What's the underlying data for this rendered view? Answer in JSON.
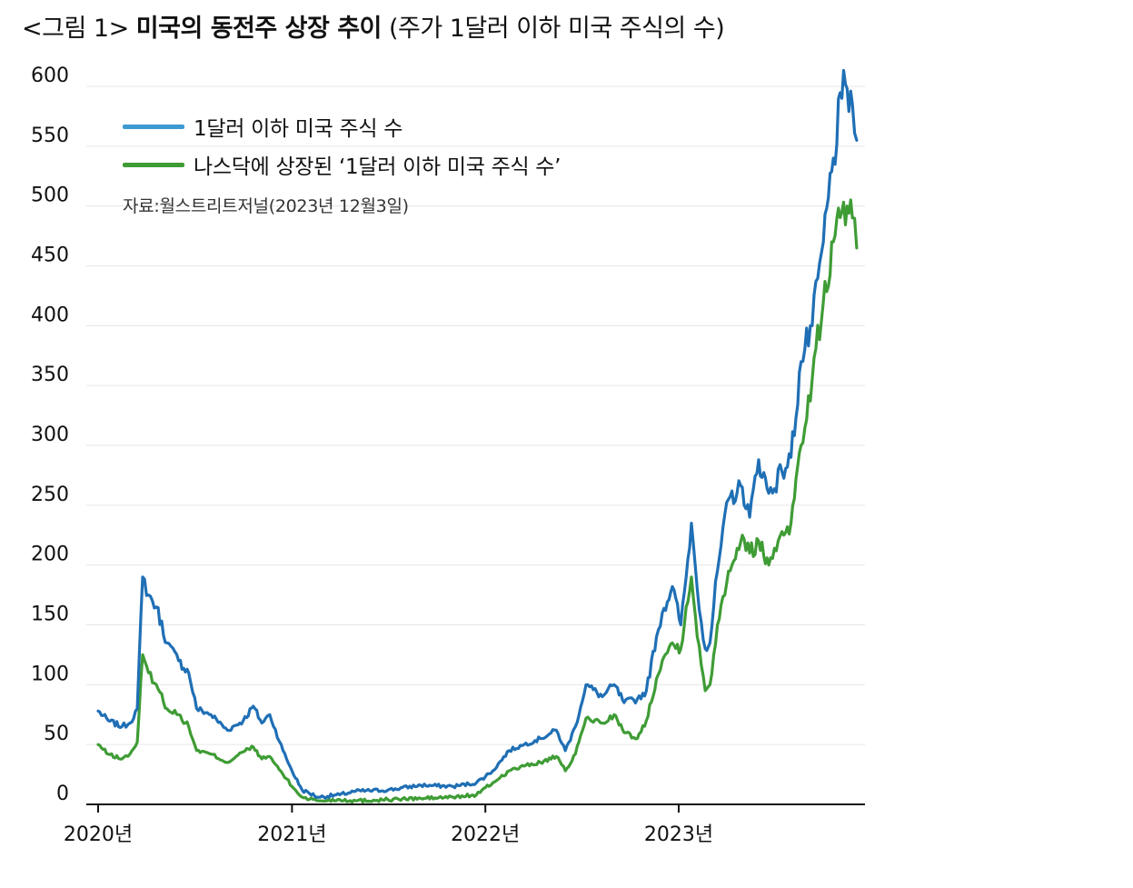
{
  "title": {
    "prefix": "<그림 1>",
    "main": "미국의 동전주 상장 추이",
    "sub": "(주가 1달러 이하 미국 주식의 수)"
  },
  "source": "자료:월스트리트저널(2023년 12월3일)",
  "colors": {
    "series_all": "#1f6fb5",
    "series_all_legend": "#3d9ad1",
    "series_nasdaq": "#3f9c35",
    "grid": "#e6e6e6",
    "axis": "#111111"
  },
  "chart_data": {
    "type": "line",
    "title": "미국의 동전주 상장 추이",
    "subtitle": "(주가 1달러 이하 미국 주식의 수)",
    "xlabel": "",
    "ylabel": "",
    "ylim": [
      0,
      600
    ],
    "yticks": [
      0,
      50,
      100,
      150,
      200,
      250,
      300,
      350,
      400,
      450,
      500,
      550,
      600
    ],
    "xlim": [
      "2020-01-01",
      "2023-12-31"
    ],
    "xticks": [
      {
        "date": "2020-01-01",
        "label": "2020년"
      },
      {
        "date": "2021-01-01",
        "label": "2021년"
      },
      {
        "date": "2022-01-01",
        "label": "2022년"
      },
      {
        "date": "2023-01-01",
        "label": "2023년"
      }
    ],
    "grid": true,
    "legend_position": "top-left",
    "series": [
      {
        "name": "1달러 이하 미국 주식 수",
        "color": "#1f6fb5",
        "points": [
          [
            "2020-01-01",
            78
          ],
          [
            "2020-01-20",
            70
          ],
          [
            "2020-02-15",
            65
          ],
          [
            "2020-03-01",
            68
          ],
          [
            "2020-03-15",
            80
          ],
          [
            "2020-03-25",
            190
          ],
          [
            "2020-04-05",
            175
          ],
          [
            "2020-04-20",
            165
          ],
          [
            "2020-05-10",
            135
          ],
          [
            "2020-06-01",
            120
          ],
          [
            "2020-06-20",
            110
          ],
          [
            "2020-07-05",
            80
          ],
          [
            "2020-08-01",
            75
          ],
          [
            "2020-09-01",
            62
          ],
          [
            "2020-10-01",
            70
          ],
          [
            "2020-10-20",
            82
          ],
          [
            "2020-11-05",
            68
          ],
          [
            "2020-11-20",
            75
          ],
          [
            "2020-12-15",
            45
          ],
          [
            "2021-01-01",
            28
          ],
          [
            "2021-01-20",
            12
          ],
          [
            "2021-02-20",
            6
          ],
          [
            "2021-04-01",
            8
          ],
          [
            "2021-05-01",
            11
          ],
          [
            "2021-07-01",
            12
          ],
          [
            "2021-09-01",
            16
          ],
          [
            "2021-11-01",
            15
          ],
          [
            "2021-12-15",
            18
          ],
          [
            "2022-01-15",
            28
          ],
          [
            "2022-02-15",
            45
          ],
          [
            "2022-03-15",
            50
          ],
          [
            "2022-04-15",
            55
          ],
          [
            "2022-05-15",
            62
          ],
          [
            "2022-06-01",
            45
          ],
          [
            "2022-06-20",
            65
          ],
          [
            "2022-07-10",
            100
          ],
          [
            "2022-08-10",
            90
          ],
          [
            "2022-09-01",
            100
          ],
          [
            "2022-09-20",
            85
          ],
          [
            "2022-10-15",
            88
          ],
          [
            "2022-11-01",
            95
          ],
          [
            "2022-11-20",
            140
          ],
          [
            "2022-12-01",
            160
          ],
          [
            "2022-12-20",
            182
          ],
          [
            "2023-01-05",
            150
          ],
          [
            "2023-01-15",
            190
          ],
          [
            "2023-01-25",
            235
          ],
          [
            "2023-02-05",
            180
          ],
          [
            "2023-02-20",
            130
          ],
          [
            "2023-03-01",
            135
          ],
          [
            "2023-03-15",
            195
          ],
          [
            "2023-04-05",
            255
          ],
          [
            "2023-05-01",
            265
          ],
          [
            "2023-05-15",
            240
          ],
          [
            "2023-06-01",
            288
          ],
          [
            "2023-06-20",
            260
          ],
          [
            "2023-07-15",
            278
          ],
          [
            "2023-08-01",
            290
          ],
          [
            "2023-08-20",
            370
          ],
          [
            "2023-09-10",
            400
          ],
          [
            "2023-10-01",
            470
          ],
          [
            "2023-10-20",
            540
          ],
          [
            "2023-11-05",
            590
          ],
          [
            "2023-11-15",
            598
          ],
          [
            "2023-11-25",
            585
          ],
          [
            "2023-12-03",
            555
          ]
        ]
      },
      {
        "name": "나스닥에 상장된 ‘1달러 이하 미국 주식 수’",
        "color": "#3f9c35",
        "points": [
          [
            "2020-01-01",
            50
          ],
          [
            "2020-01-20",
            42
          ],
          [
            "2020-02-15",
            38
          ],
          [
            "2020-03-01",
            42
          ],
          [
            "2020-03-15",
            52
          ],
          [
            "2020-03-25",
            125
          ],
          [
            "2020-04-05",
            110
          ],
          [
            "2020-04-20",
            100
          ],
          [
            "2020-05-10",
            80
          ],
          [
            "2020-06-01",
            75
          ],
          [
            "2020-06-20",
            65
          ],
          [
            "2020-07-05",
            45
          ],
          [
            "2020-08-01",
            42
          ],
          [
            "2020-09-01",
            35
          ],
          [
            "2020-10-01",
            44
          ],
          [
            "2020-10-20",
            48
          ],
          [
            "2020-11-05",
            38
          ],
          [
            "2020-11-20",
            40
          ],
          [
            "2020-12-15",
            25
          ],
          [
            "2021-01-01",
            15
          ],
          [
            "2021-01-20",
            6
          ],
          [
            "2021-02-20",
            3
          ],
          [
            "2021-04-01",
            4
          ],
          [
            "2021-05-01",
            3
          ],
          [
            "2021-07-01",
            4
          ],
          [
            "2021-09-01",
            5
          ],
          [
            "2021-11-01",
            6
          ],
          [
            "2021-12-15",
            8
          ],
          [
            "2022-01-15",
            18
          ],
          [
            "2022-02-15",
            28
          ],
          [
            "2022-03-15",
            32
          ],
          [
            "2022-04-15",
            35
          ],
          [
            "2022-05-15",
            40
          ],
          [
            "2022-06-01",
            28
          ],
          [
            "2022-06-20",
            42
          ],
          [
            "2022-07-10",
            72
          ],
          [
            "2022-08-10",
            68
          ],
          [
            "2022-09-01",
            75
          ],
          [
            "2022-09-20",
            60
          ],
          [
            "2022-10-15",
            55
          ],
          [
            "2022-11-01",
            70
          ],
          [
            "2022-11-20",
            105
          ],
          [
            "2022-12-01",
            120
          ],
          [
            "2022-12-20",
            135
          ],
          [
            "2023-01-05",
            130
          ],
          [
            "2023-01-15",
            165
          ],
          [
            "2023-01-25",
            190
          ],
          [
            "2023-02-05",
            140
          ],
          [
            "2023-02-20",
            95
          ],
          [
            "2023-03-01",
            100
          ],
          [
            "2023-03-15",
            150
          ],
          [
            "2023-04-05",
            195
          ],
          [
            "2023-05-01",
            225
          ],
          [
            "2023-05-15",
            210
          ],
          [
            "2023-06-01",
            220
          ],
          [
            "2023-06-20",
            200
          ],
          [
            "2023-07-15",
            228
          ],
          [
            "2023-08-01",
            235
          ],
          [
            "2023-08-20",
            300
          ],
          [
            "2023-09-10",
            355
          ],
          [
            "2023-10-01",
            420
          ],
          [
            "2023-10-20",
            470
          ],
          [
            "2023-11-05",
            495
          ],
          [
            "2023-11-15",
            500
          ],
          [
            "2023-11-25",
            490
          ],
          [
            "2023-12-03",
            465
          ]
        ]
      }
    ]
  }
}
